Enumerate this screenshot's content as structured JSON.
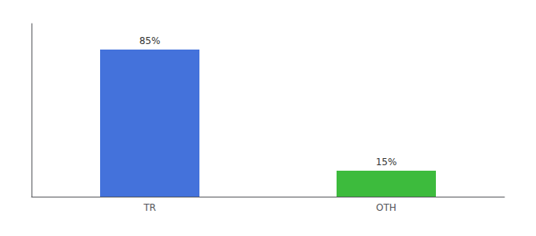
{
  "chart_data": {
    "type": "bar",
    "categories": [
      "TR",
      "OTH"
    ],
    "values": [
      85,
      15
    ],
    "value_labels": [
      "85%",
      "15%"
    ],
    "colors": [
      "#4472db",
      "#3dbb3d"
    ],
    "ylim": [
      0,
      100
    ],
    "grid": false,
    "data_labels": true,
    "tick_labels": "x"
  }
}
